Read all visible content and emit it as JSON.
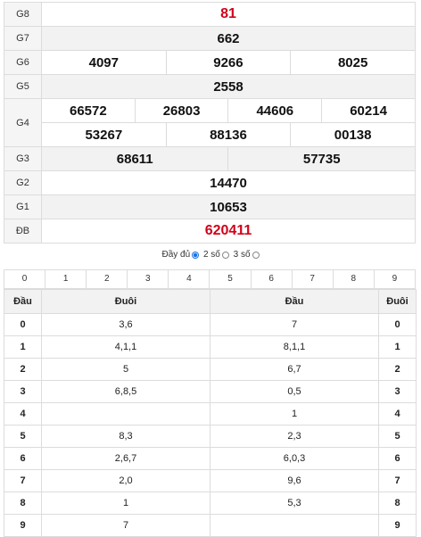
{
  "results": {
    "g8": {
      "label": "G8",
      "values": [
        "81"
      ]
    },
    "g7": {
      "label": "G7",
      "values": [
        "662"
      ]
    },
    "g6": {
      "label": "G6",
      "values": [
        "4097",
        "9266",
        "8025"
      ]
    },
    "g5": {
      "label": "G5",
      "values": [
        "2558"
      ]
    },
    "g4": {
      "label": "G4",
      "row1": [
        "66572",
        "26803",
        "44606",
        "60214"
      ],
      "row2": [
        "53267",
        "88136",
        "00138"
      ]
    },
    "g3": {
      "label": "G3",
      "values": [
        "68611",
        "57735"
      ]
    },
    "g2": {
      "label": "G2",
      "values": [
        "14470"
      ]
    },
    "g1": {
      "label": "G1",
      "values": [
        "10653"
      ]
    },
    "db": {
      "label": "ĐB",
      "values": [
        "620411"
      ]
    }
  },
  "display_options": {
    "full": "Đầy đủ",
    "two": "2 số",
    "three": "3 số",
    "selected": "full"
  },
  "digit_filter": [
    "0",
    "1",
    "2",
    "3",
    "4",
    "5",
    "6",
    "7",
    "8",
    "9"
  ],
  "loto": {
    "headers": [
      "Đầu",
      "Đuôi",
      "Đầu",
      "Đuôi"
    ],
    "rows": [
      {
        "dau": "0",
        "duoi": "3,6",
        "dau2": "7",
        "duoi2": "0"
      },
      {
        "dau": "1",
        "duoi": "4,1,1",
        "dau2": "8,1,1",
        "duoi2": "1"
      },
      {
        "dau": "2",
        "duoi": "5",
        "dau2": "6,7",
        "duoi2": "2"
      },
      {
        "dau": "3",
        "duoi": "6,8,5",
        "dau2": "0,5",
        "duoi2": "3"
      },
      {
        "dau": "4",
        "duoi": "",
        "dau2": "1",
        "duoi2": "4"
      },
      {
        "dau": "5",
        "duoi": "8,3",
        "dau2": "2,3",
        "duoi2": "5"
      },
      {
        "dau": "6",
        "duoi": "2,6,7",
        "dau2": "6,0,3",
        "duoi2": "6"
      },
      {
        "dau": "7",
        "duoi": "2,0",
        "dau2": "9,6",
        "duoi2": "7"
      },
      {
        "dau": "8",
        "duoi": "1",
        "dau2": "5,3",
        "duoi2": "8"
      },
      {
        "dau": "9",
        "duoi": "7",
        "dau2": "",
        "duoi2": "9"
      }
    ]
  },
  "colors": {
    "special": "#d0021b",
    "radio_selected": "#1a73e8"
  }
}
